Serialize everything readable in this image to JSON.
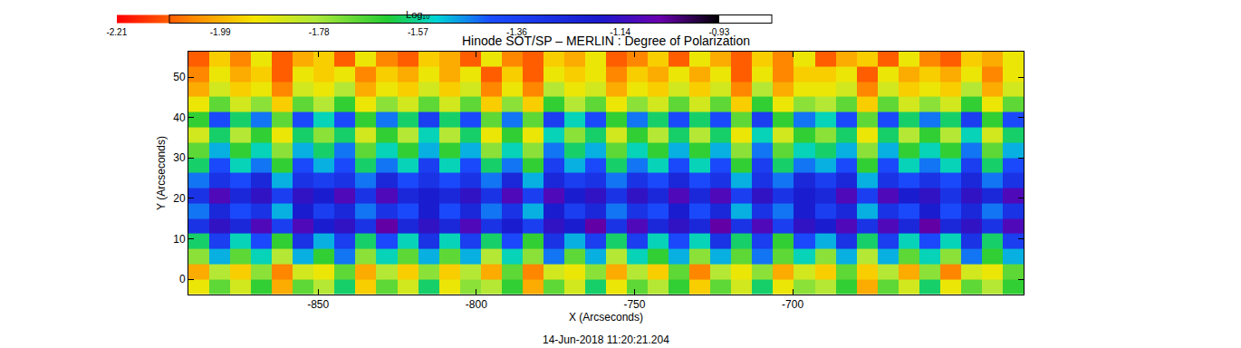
{
  "chart_data": {
    "type": "heatmap",
    "title": "Hinode SOT/SP – MERLIN : Degree of Polarization",
    "subtitle": "14-Jun-2018 11:20:21.204",
    "x_label": "X (Arcseconds)",
    "y_label": "Y (Arcseconds)",
    "grid": false,
    "xlim": [
      -891,
      -627
    ],
    "ylim": [
      -3.8,
      56.3
    ],
    "xticks": [
      -850,
      -800,
      -750,
      -700
    ],
    "yticks": [
      0,
      10,
      20,
      30,
      40,
      50
    ],
    "colorbar": {
      "title": "Log₁₀",
      "range": [
        -2.21,
        -0.93
      ],
      "ticks": [
        -2.21,
        -1.99,
        -1.78,
        -1.57,
        -1.36,
        -1.14,
        -0.93
      ]
    },
    "x": [
      -887.7,
      -881.1,
      -874.5,
      -867.9,
      -861.3,
      -854.7,
      -848.1,
      -841.5,
      -834.9,
      -828.3,
      -821.7,
      -815.1,
      -808.5,
      -801.9,
      -795.3,
      -788.7,
      -782.1,
      -775.5,
      -768.9,
      -762.3,
      -755.7,
      -749.1,
      -742.5,
      -735.9,
      -729.3,
      -722.7,
      -716.1,
      -709.5,
      -702.9,
      -696.3,
      -689.7,
      -683.1,
      -676.5,
      -669.9,
      -663.3,
      -656.7,
      -650.1,
      -643.5,
      -636.9,
      -630.3
    ],
    "y": [
      -1.9,
      1.9,
      5.6,
      9.4,
      13.1,
      16.9,
      20.7,
      24.4,
      28.2,
      31.9,
      35.7,
      39.5,
      43.2,
      47.0,
      50.7,
      54.5
    ],
    "z": [
      [
        -1.9,
        -1.7,
        -1.85,
        -1.65,
        -2.0,
        -1.7,
        -1.8,
        -1.6,
        -1.95,
        -1.7,
        -1.85,
        -1.6,
        -1.9,
        -1.75,
        -1.8,
        -1.65,
        -2.0,
        -1.7,
        -1.85,
        -1.6,
        -1.9,
        -1.7,
        -1.8,
        -1.65,
        -1.95,
        -1.7,
        -1.85,
        -1.6,
        -1.9,
        -1.75,
        -1.8,
        -1.65,
        -2.0,
        -1.7,
        -1.85,
        -1.6,
        -1.9,
        -1.7,
        -1.8,
        -1.65
      ],
      [
        -2.0,
        -1.8,
        -1.95,
        -1.75,
        -2.05,
        -1.85,
        -1.9,
        -1.7,
        -2.0,
        -1.8,
        -1.95,
        -1.75,
        -1.95,
        -1.8,
        -2.0,
        -1.7,
        -2.05,
        -1.85,
        -1.9,
        -1.75,
        -2.0,
        -1.8,
        -1.95,
        -1.7,
        -2.05,
        -1.8,
        -1.9,
        -1.75,
        -2.0,
        -1.85,
        -1.95,
        -1.7,
        -1.95,
        -1.8,
        -2.0,
        -1.75,
        -2.05,
        -1.85,
        -1.9,
        -1.7
      ],
      [
        -1.75,
        -1.5,
        -1.7,
        -1.55,
        -1.8,
        -1.5,
        -1.65,
        -1.45,
        -1.75,
        -1.55,
        -1.7,
        -1.5,
        -1.7,
        -1.5,
        -1.8,
        -1.55,
        -1.75,
        -1.45,
        -1.7,
        -1.5,
        -1.8,
        -1.55,
        -1.65,
        -1.5,
        -1.75,
        -1.5,
        -1.7,
        -1.45,
        -1.7,
        -1.55,
        -1.75,
        -1.5,
        -1.8,
        -1.5,
        -1.7,
        -1.55,
        -1.75,
        -1.45,
        -1.65,
        -1.5
      ],
      [
        -1.6,
        -1.35,
        -1.55,
        -1.4,
        -1.65,
        -1.3,
        -1.5,
        -1.35,
        -1.6,
        -1.4,
        -1.55,
        -1.3,
        -1.55,
        -1.35,
        -1.6,
        -1.4,
        -1.65,
        -1.3,
        -1.5,
        -1.35,
        -1.6,
        -1.35,
        -1.55,
        -1.4,
        -1.55,
        -1.3,
        -1.6,
        -1.35,
        -1.65,
        -1.4,
        -1.5,
        -1.3,
        -1.6,
        -1.35,
        -1.55,
        -1.4,
        -1.55,
        -1.3,
        -1.6,
        -1.35
      ],
      [
        -1.3,
        -1.15,
        -1.25,
        -1.1,
        -1.35,
        -1.1,
        -1.2,
        -1.15,
        -1.3,
        -1.05,
        -1.25,
        -1.15,
        -1.25,
        -1.1,
        -1.3,
        -1.2,
        -1.35,
        -1.15,
        -1.2,
        -1.05,
        -1.3,
        -1.1,
        -1.25,
        -1.15,
        -1.25,
        -1.05,
        -1.3,
        -1.1,
        -1.35,
        -1.15,
        -1.2,
        -1.1,
        -1.3,
        -1.1,
        -1.25,
        -1.05,
        -1.25,
        -1.15,
        -1.3,
        -1.1
      ],
      [
        -1.45,
        -1.25,
        -1.4,
        -1.3,
        -1.5,
        -1.2,
        -1.35,
        -1.25,
        -1.45,
        -1.3,
        -1.4,
        -1.2,
        -1.4,
        -1.25,
        -1.45,
        -1.3,
        -1.5,
        -1.2,
        -1.35,
        -1.25,
        -1.45,
        -1.3,
        -1.4,
        -1.2,
        -1.4,
        -1.25,
        -1.5,
        -1.3,
        -1.45,
        -1.2,
        -1.35,
        -1.25,
        -1.5,
        -1.3,
        -1.4,
        -1.2,
        -1.4,
        -1.25,
        -1.45,
        -1.3
      ],
      [
        -1.3,
        -1.1,
        -1.25,
        -1.15,
        -1.35,
        -1.15,
        -1.2,
        -1.1,
        -1.3,
        -1.1,
        -1.25,
        -1.2,
        -1.25,
        -1.15,
        -1.3,
        -1.1,
        -1.35,
        -1.1,
        -1.2,
        -1.15,
        -1.3,
        -1.15,
        -1.25,
        -1.1,
        -1.25,
        -1.1,
        -1.35,
        -1.15,
        -1.3,
        -1.2,
        -1.25,
        -1.1,
        -1.35,
        -1.1,
        -1.2,
        -1.15,
        -1.3,
        -1.15,
        -1.25,
        -1.1
      ],
      [
        -1.45,
        -1.3,
        -1.4,
        -1.25,
        -1.5,
        -1.3,
        -1.35,
        -1.3,
        -1.45,
        -1.25,
        -1.4,
        -1.3,
        -1.4,
        -1.3,
        -1.45,
        -1.25,
        -1.5,
        -1.25,
        -1.35,
        -1.3,
        -1.45,
        -1.3,
        -1.4,
        -1.25,
        -1.4,
        -1.3,
        -1.5,
        -1.3,
        -1.45,
        -1.25,
        -1.35,
        -1.25,
        -1.5,
        -1.3,
        -1.4,
        -1.3,
        -1.4,
        -1.25,
        -1.45,
        -1.3
      ],
      [
        -1.6,
        -1.4,
        -1.55,
        -1.45,
        -1.65,
        -1.4,
        -1.5,
        -1.4,
        -1.6,
        -1.45,
        -1.55,
        -1.35,
        -1.55,
        -1.4,
        -1.6,
        -1.45,
        -1.65,
        -1.35,
        -1.5,
        -1.4,
        -1.6,
        -1.45,
        -1.55,
        -1.4,
        -1.55,
        -1.4,
        -1.65,
        -1.35,
        -1.6,
        -1.45,
        -1.5,
        -1.4,
        -1.65,
        -1.4,
        -1.55,
        -1.45,
        -1.55,
        -1.35,
        -1.6,
        -1.4
      ],
      [
        -1.7,
        -1.5,
        -1.65,
        -1.55,
        -1.75,
        -1.5,
        -1.6,
        -1.45,
        -1.7,
        -1.55,
        -1.65,
        -1.5,
        -1.65,
        -1.5,
        -1.75,
        -1.55,
        -1.75,
        -1.45,
        -1.6,
        -1.5,
        -1.7,
        -1.55,
        -1.65,
        -1.5,
        -1.65,
        -1.5,
        -1.75,
        -1.45,
        -1.7,
        -1.55,
        -1.6,
        -1.5,
        -1.75,
        -1.5,
        -1.65,
        -1.55,
        -1.65,
        -1.45,
        -1.7,
        -1.5
      ],
      [
        -1.85,
        -1.6,
        -1.8,
        -1.65,
        -1.9,
        -1.6,
        -1.75,
        -1.6,
        -1.85,
        -1.65,
        -1.8,
        -1.55,
        -1.8,
        -1.6,
        -1.9,
        -1.65,
        -1.9,
        -1.55,
        -1.75,
        -1.6,
        -1.85,
        -1.65,
        -1.8,
        -1.6,
        -1.8,
        -1.6,
        -1.9,
        -1.55,
        -1.85,
        -1.65,
        -1.75,
        -1.6,
        -1.9,
        -1.6,
        -1.8,
        -1.65,
        -1.8,
        -1.55,
        -1.85,
        -1.6
      ],
      [
        -1.65,
        -1.4,
        -1.6,
        -1.45,
        -1.7,
        -1.4,
        -1.55,
        -1.4,
        -1.65,
        -1.45,
        -1.6,
        -1.35,
        -1.6,
        -1.4,
        -1.7,
        -1.45,
        -1.7,
        -1.35,
        -1.55,
        -1.4,
        -1.65,
        -1.45,
        -1.6,
        -1.4,
        -1.6,
        -1.4,
        -1.7,
        -1.35,
        -1.65,
        -1.45,
        -1.55,
        -1.4,
        -1.7,
        -1.4,
        -1.6,
        -1.45,
        -1.6,
        -1.35,
        -1.65,
        -1.4
      ],
      [
        -1.9,
        -1.7,
        -1.85,
        -1.75,
        -1.95,
        -1.7,
        -1.8,
        -1.65,
        -1.9,
        -1.75,
        -1.85,
        -1.7,
        -1.85,
        -1.7,
        -1.95,
        -1.75,
        -1.95,
        -1.65,
        -1.8,
        -1.7,
        -1.9,
        -1.75,
        -1.85,
        -1.7,
        -1.85,
        -1.7,
        -1.95,
        -1.65,
        -1.9,
        -1.75,
        -1.8,
        -1.7,
        -1.95,
        -1.7,
        -1.85,
        -1.75,
        -1.85,
        -1.65,
        -1.9,
        -1.7
      ],
      [
        -2.0,
        -1.85,
        -1.95,
        -1.9,
        -2.05,
        -1.85,
        -1.9,
        -1.8,
        -2.0,
        -1.9,
        -1.95,
        -1.85,
        -1.95,
        -1.85,
        -2.05,
        -1.9,
        -2.05,
        -1.8,
        -1.9,
        -1.85,
        -2.0,
        -1.9,
        -1.95,
        -1.85,
        -1.95,
        -1.85,
        -2.05,
        -1.8,
        -2.0,
        -1.9,
        -1.9,
        -1.85,
        -2.05,
        -1.85,
        -1.95,
        -1.9,
        -1.95,
        -1.8,
        -2.0,
        -1.85
      ],
      [
        -2.05,
        -1.9,
        -2.0,
        -1.95,
        -2.1,
        -1.9,
        -1.95,
        -1.9,
        -2.05,
        -1.95,
        -2.0,
        -1.9,
        -2.0,
        -1.9,
        -2.1,
        -1.95,
        -2.1,
        -1.9,
        -1.95,
        -1.9,
        -2.05,
        -1.95,
        -2.0,
        -1.9,
        -2.0,
        -1.9,
        -2.1,
        -1.9,
        -2.05,
        -1.95,
        -1.95,
        -1.9,
        -2.1,
        -1.9,
        -2.0,
        -1.95,
        -2.0,
        -1.9,
        -2.05,
        -1.9
      ],
      [
        -2.1,
        -1.95,
        -2.05,
        -1.9,
        -2.1,
        -2.0,
        -1.95,
        -2.1,
        -1.9,
        -2.05,
        -2.1,
        -1.95,
        -2.0,
        -2.1,
        -1.9,
        -2.05,
        -2.1,
        -1.95,
        -2.0,
        -1.9,
        -2.1,
        -2.05,
        -1.95,
        -2.1,
        -1.9,
        -2.0,
        -2.1,
        -1.95,
        -2.05,
        -1.9,
        -2.1,
        -2.0,
        -1.95,
        -2.1,
        -1.9,
        -2.05,
        -2.1,
        -1.95,
        -2.0,
        -1.9
      ]
    ]
  }
}
